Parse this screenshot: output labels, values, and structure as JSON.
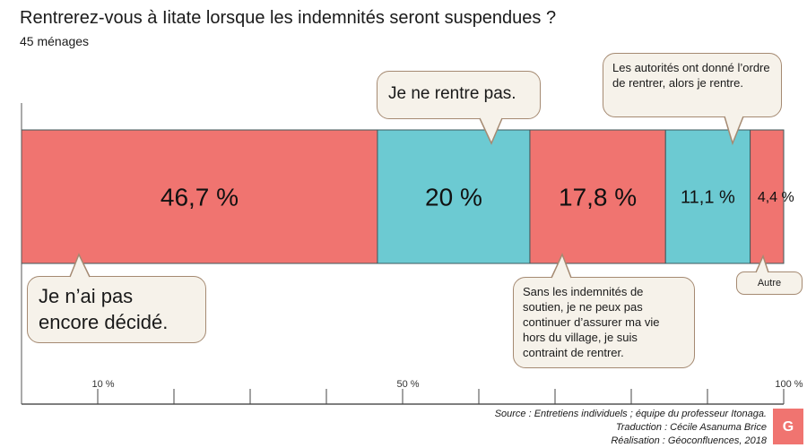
{
  "chart_data": {
    "type": "bar",
    "orientation": "horizontal-stacked",
    "title": "Rentrerez-vous à Iitate lorsque les indemnités seront suspendues ?",
    "subtitle": "45 ménages",
    "segments": [
      {
        "label": "46,7 %",
        "value": 46.7,
        "color": "#f07470",
        "annotation": "Je n’ai pas encore décidé."
      },
      {
        "label": "20 %",
        "value": 20,
        "color": "#6ccad2",
        "annotation": "Je ne rentre  pas."
      },
      {
        "label": "17,8 %",
        "value": 17.8,
        "color": "#f07470",
        "annotation": "Sans les indemnités de soutien, je ne peux pas continuer d’assurer ma vie hors du village, je suis contraint de rentrer."
      },
      {
        "label": "11,1 %",
        "value": 11.1,
        "color": "#6ccad2",
        "annotation": "Les autorités ont donné l’ordre de rentrer, alors je rentre."
      },
      {
        "label": "4,4 %",
        "value": 4.4,
        "color": "#f07470",
        "annotation": "Autre"
      }
    ],
    "xlim": [
      0,
      100
    ],
    "ticks": [
      10,
      20,
      30,
      40,
      50,
      60,
      70,
      80,
      90,
      100
    ],
    "tick_labels": [
      {
        "value": 10,
        "label": "10 %"
      },
      {
        "value": 50,
        "label": "50 %"
      },
      {
        "value": 100,
        "label": "100 %"
      }
    ]
  },
  "source": "Source : Entretiens individuels ; équipe du professeur Itonaga.",
  "translation": "Traduction : Cécile Asanuma Brice",
  "realisation": "Réalisation : Géoconfluences, 2018",
  "logo": "Géo confluences"
}
